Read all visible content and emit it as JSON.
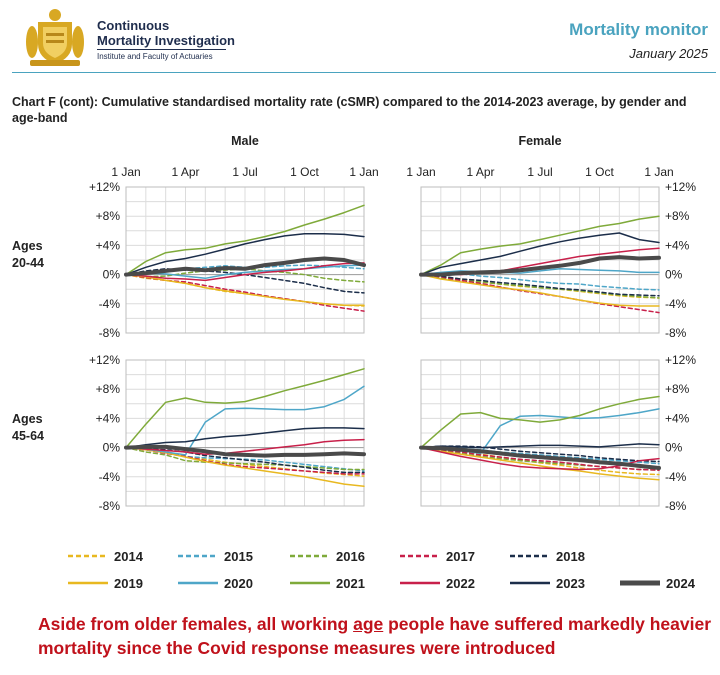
{
  "header": {
    "org_line1": "Continuous",
    "org_line2": "Mortality Investigation",
    "org_sub": "Institute and Faculty of Actuaries",
    "title": "Mortality monitor",
    "date": "January 2025"
  },
  "chart_title": "Chart F (cont): Cumulative standardised mortality rate (cSMR) compared to the 2014-2023 average, by gender and age-band",
  "footnote": {
    "part1": "Aside from older females, all working ",
    "underlined": "age",
    "part2": " people have suffered markedly heavier mortality since the Covid response measures were introduced"
  },
  "chart_data": {
    "type": "line",
    "x_tick_labels": [
      "1 Jan",
      "1 Apr",
      "1 Jul",
      "1 Oct",
      "1 Jan"
    ],
    "x": [
      0,
      1,
      2,
      3,
      4,
      5,
      6,
      7,
      8,
      9,
      10,
      11,
      12
    ],
    "xlim": [
      0,
      12
    ],
    "ylim": [
      -8,
      12
    ],
    "y_ticks": [
      -8,
      -4,
      0,
      4,
      8,
      12
    ],
    "y_tick_labels": [
      "-8%",
      "-4%",
      "0%",
      "+4%",
      "+8%",
      "+12%"
    ],
    "grid": true,
    "legend_position": "bottom",
    "column_labels": [
      "Male",
      "Female"
    ],
    "row_labels": [
      [
        "Ages",
        "20-44"
      ],
      [
        "Ages",
        "45-64"
      ]
    ],
    "series_styles": [
      {
        "name": "2014",
        "color": "#e8b820",
        "dash": true,
        "width": 1.5
      },
      {
        "name": "2015",
        "color": "#4ea6c8",
        "dash": true,
        "width": 1.5
      },
      {
        "name": "2016",
        "color": "#7faa3a",
        "dash": true,
        "width": 1.5
      },
      {
        "name": "2017",
        "color": "#c8204a",
        "dash": true,
        "width": 1.5
      },
      {
        "name": "2018",
        "color": "#1c2e4a",
        "dash": true,
        "width": 1.5
      },
      {
        "name": "2019",
        "color": "#e8b820",
        "dash": false,
        "width": 1.5
      },
      {
        "name": "2020",
        "color": "#4ea6c8",
        "dash": false,
        "width": 1.5
      },
      {
        "name": "2021",
        "color": "#7faa3a",
        "dash": false,
        "width": 1.5
      },
      {
        "name": "2022",
        "color": "#c8204a",
        "dash": false,
        "width": 1.5
      },
      {
        "name": "2023",
        "color": "#1c2e4a",
        "dash": false,
        "width": 1.5
      },
      {
        "name": "2024",
        "color": "#4a4a4a",
        "dash": false,
        "width": 4
      }
    ],
    "panels": [
      {
        "gender": "Male",
        "age_band": "20-44",
        "series": [
          {
            "name": "2014",
            "values": [
              0,
              -0.5,
              -0.8,
              -1.2,
              -1.8,
              -2.3,
              -2.6,
              -2.9,
              -3.3,
              -3.7,
              -4.0,
              -4.2,
              -4.3
            ]
          },
          {
            "name": "2015",
            "values": [
              0,
              0.3,
              0.5,
              0.8,
              1.0,
              1.2,
              1.0,
              1.0,
              1.2,
              1.3,
              1.2,
              1.0,
              0.8
            ]
          },
          {
            "name": "2016",
            "values": [
              0,
              -0.3,
              -0.2,
              0.2,
              0.5,
              0.6,
              0.8,
              0.5,
              0.3,
              0.0,
              -0.5,
              -0.8,
              -1.0
            ]
          },
          {
            "name": "2017",
            "values": [
              0,
              -0.4,
              -0.8,
              -1.0,
              -1.5,
              -2.0,
              -2.4,
              -2.9,
              -3.3,
              -3.7,
              -4.2,
              -4.6,
              -5.0
            ]
          },
          {
            "name": "2018",
            "values": [
              0,
              0.5,
              0.8,
              0.6,
              0.5,
              0.3,
              0.0,
              -0.4,
              -0.8,
              -1.2,
              -1.8,
              -2.3,
              -2.5
            ]
          },
          {
            "name": "2019",
            "values": [
              0,
              -0.3,
              -0.8,
              -1.2,
              -1.8,
              -2.2,
              -2.6,
              -3.0,
              -3.4,
              -3.7,
              -4.0,
              -4.2,
              -4.2
            ]
          },
          {
            "name": "2020",
            "values": [
              0,
              0.2,
              0.1,
              -0.2,
              -0.5,
              0.0,
              0.3,
              0.5,
              0.7,
              0.8,
              1.0,
              1.2,
              1.3
            ]
          },
          {
            "name": "2021",
            "values": [
              0,
              1.8,
              3.0,
              3.4,
              3.6,
              4.2,
              4.6,
              5.2,
              5.9,
              6.8,
              7.6,
              8.5,
              9.5
            ]
          },
          {
            "name": "2022",
            "values": [
              0,
              -0.2,
              -0.5,
              -0.6,
              -0.8,
              -0.4,
              0.0,
              0.3,
              0.5,
              0.8,
              1.2,
              1.5,
              1.6
            ]
          },
          {
            "name": "2023",
            "values": [
              0,
              1.0,
              1.8,
              2.2,
              2.8,
              3.5,
              4.2,
              4.8,
              5.3,
              5.6,
              5.6,
              5.5,
              5.2
            ]
          },
          {
            "name": "2024",
            "values": [
              0,
              0.2,
              0.5,
              0.8,
              0.6,
              0.9,
              0.8,
              1.3,
              1.6,
              2.0,
              2.2,
              2.0,
              1.3
            ]
          }
        ]
      },
      {
        "gender": "Female",
        "age_band": "20-44",
        "series": [
          {
            "name": "2014",
            "values": [
              0,
              -0.3,
              -0.6,
              -1.0,
              -1.3,
              -1.6,
              -1.8,
              -2.0,
              -2.3,
              -2.6,
              -2.9,
              -3.1,
              -3.2
            ]
          },
          {
            "name": "2015",
            "values": [
              0,
              0.2,
              0.1,
              -0.2,
              -0.4,
              -0.7,
              -1.0,
              -1.2,
              -1.3,
              -1.6,
              -1.8,
              -2.0,
              -2.1
            ]
          },
          {
            "name": "2016",
            "values": [
              0,
              -0.5,
              -0.8,
              -1.0,
              -1.3,
              -1.5,
              -1.8,
              -2.0,
              -2.2,
              -2.5,
              -2.8,
              -3.0,
              -3.2
            ]
          },
          {
            "name": "2017",
            "values": [
              0,
              -0.3,
              -0.8,
              -1.2,
              -1.7,
              -2.2,
              -2.6,
              -3.0,
              -3.5,
              -4.0,
              -4.4,
              -4.8,
              -5.2
            ]
          },
          {
            "name": "2018",
            "values": [
              0,
              -0.2,
              -0.6,
              -0.8,
              -1.1,
              -1.3,
              -1.6,
              -1.9,
              -2.1,
              -2.4,
              -2.7,
              -2.8,
              -2.9
            ]
          },
          {
            "name": "2019",
            "values": [
              0,
              -0.6,
              -1.0,
              -1.4,
              -1.8,
              -2.1,
              -2.5,
              -3.0,
              -3.5,
              -3.9,
              -4.2,
              -4.3,
              -4.3
            ]
          },
          {
            "name": "2020",
            "values": [
              0,
              0.3,
              0.5,
              0.4,
              0.3,
              0.2,
              0.5,
              0.8,
              0.7,
              0.6,
              0.5,
              0.3,
              0.3
            ]
          },
          {
            "name": "2021",
            "values": [
              0,
              1.3,
              3.0,
              3.5,
              3.9,
              4.2,
              4.8,
              5.4,
              6.0,
              6.6,
              7.0,
              7.6,
              8.0
            ]
          },
          {
            "name": "2022",
            "values": [
              0,
              0.1,
              0.0,
              0.2,
              0.5,
              1.0,
              1.5,
              2.0,
              2.5,
              2.8,
              3.1,
              3.4,
              3.6
            ]
          },
          {
            "name": "2023",
            "values": [
              0,
              1.0,
              1.5,
              2.0,
              2.5,
              3.2,
              3.9,
              4.5,
              5.0,
              5.4,
              5.7,
              4.8,
              4.4
            ]
          },
          {
            "name": "2024",
            "values": [
              0,
              0.0,
              0.2,
              0.3,
              0.4,
              0.6,
              0.9,
              1.2,
              1.6,
              2.2,
              2.4,
              2.2,
              2.3
            ]
          }
        ]
      },
      {
        "gender": "Male",
        "age_band": "45-64",
        "series": [
          {
            "name": "2014",
            "values": [
              0,
              -0.3,
              -0.7,
              -1.2,
              -1.6,
              -2.0,
              -2.3,
              -2.6,
              -2.9,
              -3.2,
              -3.5,
              -3.7,
              -3.9
            ]
          },
          {
            "name": "2015",
            "values": [
              0,
              -0.2,
              -0.6,
              -1.2,
              -1.4,
              -1.5,
              -1.6,
              -1.7,
              -2.0,
              -2.3,
              -2.6,
              -2.9,
              -3.2
            ]
          },
          {
            "name": "2016",
            "values": [
              0,
              -0.6,
              -1.0,
              -1.8,
              -2.0,
              -2.1,
              -2.2,
              -2.3,
              -2.4,
              -2.6,
              -2.8,
              -3.0,
              -3.0
            ]
          },
          {
            "name": "2017",
            "values": [
              0,
              -0.3,
              -0.8,
              -1.2,
              -1.8,
              -2.3,
              -2.6,
              -2.8,
              -3.0,
              -3.2,
              -3.4,
              -3.6,
              -3.6
            ]
          },
          {
            "name": "2018",
            "values": [
              0,
              -0.1,
              -0.3,
              -0.6,
              -1.1,
              -1.4,
              -1.7,
              -2.0,
              -2.4,
              -2.7,
              -3.1,
              -3.4,
              -3.4
            ]
          },
          {
            "name": "2019",
            "values": [
              0,
              -0.3,
              -0.7,
              -1.3,
              -1.9,
              -2.4,
              -2.8,
              -3.2,
              -3.6,
              -4.0,
              -4.5,
              -5.0,
              -5.3
            ]
          },
          {
            "name": "2020",
            "values": [
              0,
              -0.2,
              -0.6,
              -1.0,
              3.5,
              5.3,
              5.4,
              5.3,
              5.2,
              5.2,
              5.6,
              6.6,
              8.4
            ]
          },
          {
            "name": "2021",
            "values": [
              0,
              3.2,
              6.2,
              6.8,
              6.2,
              6.1,
              6.3,
              7.0,
              7.8,
              8.5,
              9.2,
              10.0,
              10.8
            ]
          },
          {
            "name": "2022",
            "values": [
              0,
              -0.2,
              -0.4,
              -0.6,
              -0.9,
              -0.8,
              -0.5,
              -0.2,
              0.1,
              0.4,
              0.8,
              1.0,
              1.1
            ]
          },
          {
            "name": "2023",
            "values": [
              0,
              0.4,
              0.7,
              0.8,
              1.2,
              1.5,
              1.7,
              2.0,
              2.3,
              2.6,
              2.7,
              2.7,
              2.6
            ]
          },
          {
            "name": "2024",
            "values": [
              0,
              0.1,
              0.1,
              -0.2,
              -0.5,
              -0.9,
              -1.0,
              -1.1,
              -1.0,
              -1.0,
              -0.9,
              -0.8,
              -0.9
            ]
          }
        ]
      },
      {
        "gender": "Female",
        "age_band": "45-64",
        "series": [
          {
            "name": "2014",
            "values": [
              0,
              -0.2,
              -0.5,
              -0.9,
              -1.3,
              -1.7,
              -2.1,
              -2.4,
              -2.8,
              -3.1,
              -3.4,
              -3.6,
              -3.7
            ]
          },
          {
            "name": "2015",
            "values": [
              0,
              0.0,
              -0.1,
              -0.3,
              -0.6,
              -0.8,
              -1.0,
              -1.2,
              -1.4,
              -1.6,
              -1.8,
              -2.0,
              -2.2
            ]
          },
          {
            "name": "2016",
            "values": [
              0,
              -0.4,
              -0.8,
              -1.2,
              -1.5,
              -1.8,
              -2.0,
              -2.2,
              -2.4,
              -2.6,
              -2.8,
              -3.0,
              -3.1
            ]
          },
          {
            "name": "2017",
            "values": [
              0,
              -0.3,
              -0.6,
              -1.0,
              -1.3,
              -1.6,
              -1.8,
              -2.0,
              -2.3,
              -2.6,
              -2.8,
              -3.0,
              -3.1
            ]
          },
          {
            "name": "2018",
            "values": [
              0,
              0.2,
              0.2,
              0.1,
              -0.2,
              -0.5,
              -0.7,
              -0.9,
              -1.1,
              -1.4,
              -1.6,
              -1.8,
              -1.9
            ]
          },
          {
            "name": "2019",
            "values": [
              0,
              -0.5,
              -0.9,
              -1.3,
              -1.7,
              -2.1,
              -2.5,
              -2.9,
              -3.2,
              -3.6,
              -3.9,
              -4.2,
              -4.4
            ]
          },
          {
            "name": "2020",
            "values": [
              0,
              0.0,
              -0.4,
              -0.8,
              3.0,
              4.3,
              4.4,
              4.2,
              4.0,
              4.1,
              4.4,
              4.8,
              5.3
            ]
          },
          {
            "name": "2021",
            "values": [
              0,
              2.4,
              4.6,
              4.8,
              4.0,
              3.8,
              3.5,
              3.8,
              4.4,
              5.3,
              6.0,
              6.6,
              7.0
            ]
          },
          {
            "name": "2022",
            "values": [
              0,
              -0.6,
              -1.2,
              -1.7,
              -2.2,
              -2.6,
              -2.8,
              -2.9,
              -3.0,
              -2.9,
              -2.5,
              -1.8,
              -1.5
            ]
          },
          {
            "name": "2023",
            "values": [
              0,
              0.2,
              0.1,
              0.0,
              0.1,
              0.2,
              0.3,
              0.3,
              0.2,
              0.1,
              0.3,
              0.5,
              0.4
            ]
          },
          {
            "name": "2024",
            "values": [
              0,
              -0.1,
              -0.3,
              -0.5,
              -0.8,
              -1.1,
              -1.3,
              -1.5,
              -1.7,
              -2.0,
              -2.2,
              -2.5,
              -2.8
            ]
          }
        ]
      }
    ]
  }
}
